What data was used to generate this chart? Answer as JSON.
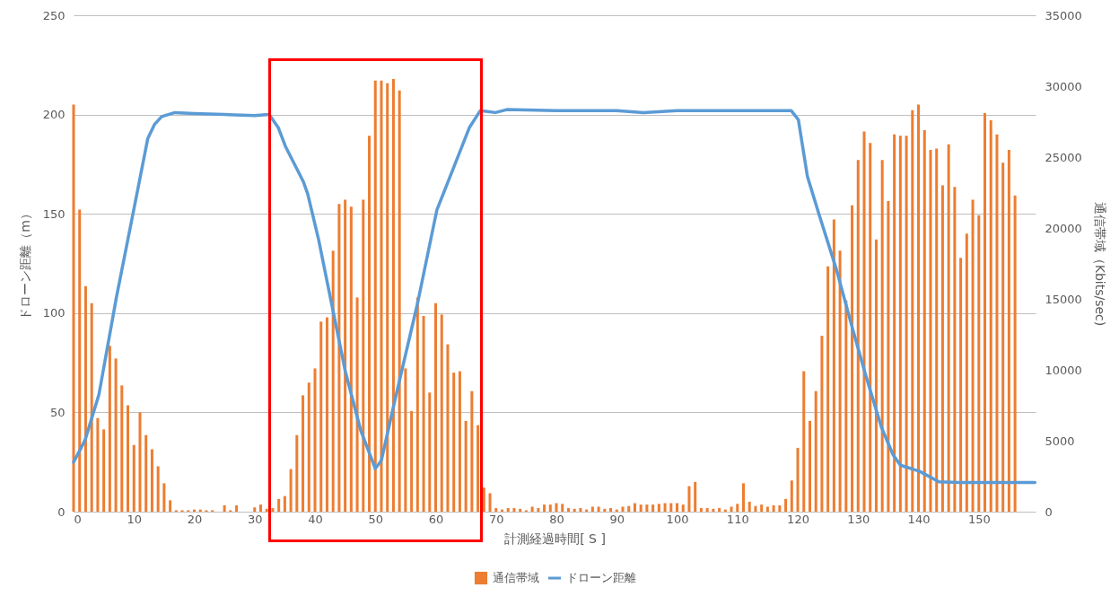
{
  "chart_data": {
    "type": "bar",
    "xlabel": "計測経過時間[ S ]",
    "ylabel": "ドローン距離（m）",
    "y2label": "通信帯域（Kbits/sec)",
    "xlim": [
      0,
      159.4
    ],
    "xticks": [
      0,
      10,
      20,
      30,
      40,
      50,
      60,
      70,
      80,
      90,
      100,
      110,
      120,
      130,
      140,
      150
    ],
    "ylim": [
      0,
      250
    ],
    "yticks": [
      0,
      50,
      100,
      150,
      200,
      250
    ],
    "y2lim": [
      0,
      35000
    ],
    "y2ticks": [
      0,
      5000,
      10000,
      15000,
      20000,
      25000,
      30000,
      35000
    ],
    "grid": "y",
    "legend": "bottom",
    "series": [
      {
        "name": "通信帯域",
        "axis": "y2",
        "color": "#ed7d31",
        "x": [
          0,
          1,
          2,
          3,
          4,
          5,
          6,
          7,
          8,
          9,
          10,
          11,
          12,
          13,
          14,
          15,
          16,
          17,
          18,
          19,
          20,
          21,
          22,
          23,
          24,
          25,
          26,
          27,
          28,
          29,
          30,
          31,
          32,
          33,
          34,
          35,
          36,
          37,
          38,
          39,
          40,
          41,
          42,
          43,
          44,
          45,
          46,
          47,
          48,
          49,
          50,
          51,
          52,
          53,
          54,
          55,
          56,
          57,
          58,
          59,
          60,
          61,
          62,
          63,
          64,
          65,
          66,
          67,
          68,
          69,
          70,
          71,
          72,
          73,
          74,
          75,
          76,
          77,
          78,
          79,
          80,
          81,
          82,
          83,
          84,
          85,
          86,
          87,
          88,
          89,
          90,
          91,
          92,
          93,
          94,
          95,
          96,
          97,
          98,
          99,
          100,
          101,
          102,
          103,
          104,
          105,
          106,
          107,
          108,
          109,
          110,
          111,
          112,
          113,
          114,
          115,
          116,
          117,
          118,
          119,
          120,
          121,
          122,
          123,
          124,
          125,
          126,
          127,
          128,
          129,
          130,
          131,
          132,
          133,
          134,
          135,
          136,
          137,
          138,
          139,
          140,
          141,
          142,
          143,
          144,
          145,
          146,
          147,
          148,
          149,
          150,
          151,
          152,
          153,
          154,
          155,
          156
        ],
        "values": [
          28700,
          21300,
          15900,
          14700,
          6600,
          5800,
          11700,
          10800,
          8900,
          7500,
          4700,
          7000,
          5400,
          4400,
          3200,
          2000,
          800,
          100,
          100,
          100,
          150,
          150,
          100,
          100,
          0,
          450,
          100,
          450,
          0,
          0,
          300,
          500,
          200,
          250,
          900,
          1100,
          3000,
          5400,
          8200,
          9100,
          10100,
          13400,
          13700,
          18400,
          21700,
          22000,
          21500,
          15100,
          22000,
          26500,
          30400,
          30400,
          30200,
          30500,
          29700,
          10100,
          7100,
          15100,
          13800,
          8400,
          14700,
          13900,
          11800,
          9800,
          9900,
          6400,
          8500,
          6100,
          1700,
          1300,
          250,
          150,
          250,
          250,
          200,
          100,
          350,
          250,
          500,
          500,
          600,
          550,
          250,
          200,
          250,
          150,
          350,
          350,
          200,
          250,
          150,
          350,
          400,
          600,
          500,
          500,
          500,
          550,
          600,
          600,
          600,
          500,
          1800,
          2100,
          250,
          250,
          200,
          250,
          150,
          350,
          550,
          2000,
          700,
          400,
          500,
          350,
          450,
          450,
          900,
          2200,
          4500,
          9900,
          6400,
          8500,
          12400,
          17300,
          20600,
          18400,
          14900,
          21600,
          24800,
          26800,
          26000,
          19200,
          24800,
          21900,
          26600,
          26500,
          26500,
          28300,
          28700,
          26900,
          25500,
          25600,
          23000,
          25900,
          22900,
          17900,
          19600,
          22000,
          20900,
          28100,
          27600,
          26600,
          24600,
          25500,
          22300
        ]
      },
      {
        "name": "ドローン距離",
        "type": "line",
        "color": "#5b9bd5",
        "x": [
          0,
          1.9,
          4.2,
          7.1,
          10.1,
          12.3,
          13.4,
          14.6,
          16.8,
          20,
          25,
          30,
          32.4,
          33.9,
          35.1,
          38.1,
          38.8,
          40.6,
          42.8,
          45,
          47.6,
          50,
          51,
          53.2,
          57,
          60.2,
          63.2,
          65.6,
          67.4,
          69.9,
          71.8,
          80,
          90,
          94.4,
          100,
          110,
          118.9,
          120.1,
          121.6,
          123.6,
          126.4,
          129.1,
          131.2,
          133.9,
          135.8,
          137,
          140.2,
          143.4,
          146.7,
          159.3
        ],
        "values": [
          24.9,
          36,
          59,
          108,
          154,
          188,
          195,
          199,
          201,
          200.5,
          200,
          199.5,
          200,
          193.5,
          184,
          166,
          160,
          137,
          104,
          71,
          40.7,
          21.7,
          25.8,
          55.6,
          105,
          152,
          175,
          193.5,
          202,
          201,
          202.5,
          202,
          202,
          201,
          202,
          202,
          202,
          197.4,
          168.8,
          149,
          122,
          91.9,
          69.3,
          42.2,
          28.6,
          23.4,
          20.3,
          15,
          14.7,
          14.7
        ]
      }
    ]
  }
}
